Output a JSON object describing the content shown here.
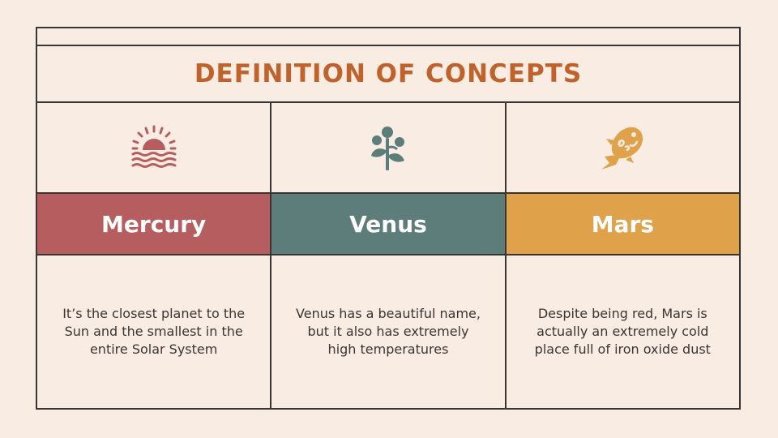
{
  "title": "DEFINITION OF CONCEPTS",
  "colors": {
    "background": "#f9ece3",
    "title": "#c0622b",
    "border": "#3a3533",
    "mercury": "#b55d5f",
    "venus": "#5d7d7b",
    "mars": "#dfa14a"
  },
  "columns": [
    {
      "icon": "sunset-icon",
      "name": "Mercury",
      "description": "It’s the closest planet to the Sun and the smallest in the entire Solar System"
    },
    {
      "icon": "plant-icon",
      "name": "Venus",
      "description": "Venus has a beautiful name, but it also has extremely high temperatures"
    },
    {
      "icon": "fish-icon",
      "name": "Mars",
      "description": "Despite being red, Mars is actually an extremely cold place full of iron oxide dust"
    }
  ]
}
